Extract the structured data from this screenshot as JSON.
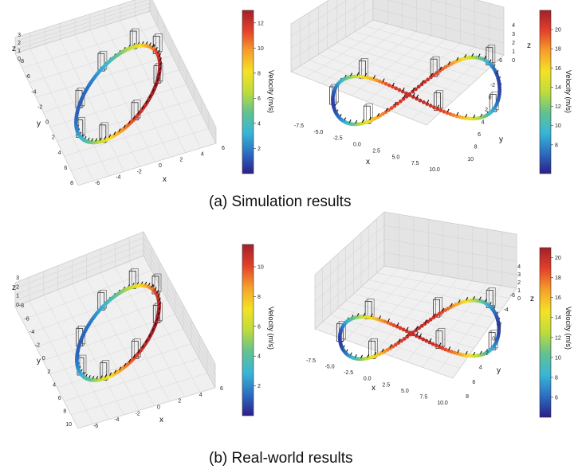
{
  "captions": {
    "a": "(a) Simulation results",
    "b": "(b) Real-world results"
  },
  "colormap": [
    "#2c1f8a",
    "#2b6ec2",
    "#38b6d6",
    "#62c28f",
    "#bfdc3a",
    "#f4e224",
    "#f7a02b",
    "#e4402a",
    "#a3202a"
  ],
  "chart_data": [
    {
      "id": "sim-circle",
      "type": "3d-trajectory",
      "trajectory": "circle",
      "colorbar_label": "Velocity (m/s)",
      "clim": [
        0,
        13
      ],
      "colorbar_ticks": [
        "2",
        "4",
        "6",
        "8",
        "10",
        "12"
      ],
      "axes": {
        "x": {
          "label": "x",
          "ticks": [
            "-6",
            "-4",
            "-2",
            "0",
            "2",
            "4",
            "6"
          ]
        },
        "y": {
          "label": "y",
          "ticks": [
            "-8",
            "-6",
            "-4",
            "-2",
            "0",
            "2",
            "4",
            "6",
            "8"
          ]
        },
        "z": {
          "label": "z",
          "ticks": [
            "0",
            "1",
            "2",
            "3"
          ]
        }
      }
    },
    {
      "id": "sim-figure8",
      "type": "3d-trajectory",
      "trajectory": "figure-eight",
      "colorbar_label": "Velocity (m/s)",
      "clim": [
        5,
        22
      ],
      "colorbar_ticks": [
        "8",
        "10",
        "12",
        "14",
        "16",
        "18",
        "20"
      ],
      "axes": {
        "x": {
          "label": "x",
          "ticks": [
            "-7.5",
            "-5.0",
            "-2.5",
            "0.0",
            "2.5",
            "5.0",
            "7.5",
            "10.0"
          ]
        },
        "y": {
          "label": "y",
          "ticks": [
            "-6",
            "-4",
            "-2",
            "0",
            "2",
            "4",
            "6",
            "8",
            "10"
          ]
        },
        "z": {
          "label": "z",
          "ticks": [
            "0",
            "1",
            "2",
            "3",
            "4"
          ]
        }
      }
    },
    {
      "id": "real-circle",
      "type": "3d-trajectory",
      "trajectory": "circle",
      "colorbar_label": "Velocity (m/s)",
      "clim": [
        0,
        11.5
      ],
      "colorbar_ticks": [
        "2",
        "4",
        "6",
        "8",
        "10"
      ],
      "axes": {
        "x": {
          "label": "x",
          "ticks": [
            "-6",
            "-4",
            "-2",
            "0",
            "2",
            "4",
            "6"
          ]
        },
        "y": {
          "label": "y",
          "ticks": [
            "-8",
            "-6",
            "-4",
            "-2",
            "0",
            "2",
            "4",
            "6",
            "8",
            "10"
          ]
        },
        "z": {
          "label": "z",
          "ticks": [
            "0",
            "1",
            "2",
            "3"
          ]
        }
      }
    },
    {
      "id": "real-figure8",
      "type": "3d-trajectory",
      "trajectory": "figure-eight",
      "colorbar_label": "Velocity (m/s)",
      "clim": [
        4,
        21
      ],
      "colorbar_ticks": [
        "6",
        "8",
        "10",
        "12",
        "14",
        "16",
        "18",
        "20"
      ],
      "axes": {
        "x": {
          "label": "x",
          "ticks": [
            "-7.5",
            "-5.0",
            "-2.5",
            "0.0",
            "2.5",
            "5.0",
            "7.5",
            "10.0"
          ]
        },
        "y": {
          "label": "y",
          "ticks": [
            "-6",
            "-4",
            "-2",
            "0",
            "2",
            "4",
            "6",
            "8"
          ]
        },
        "z": {
          "label": "z",
          "ticks": [
            "0",
            "1",
            "2",
            "3",
            "4"
          ]
        }
      }
    }
  ]
}
